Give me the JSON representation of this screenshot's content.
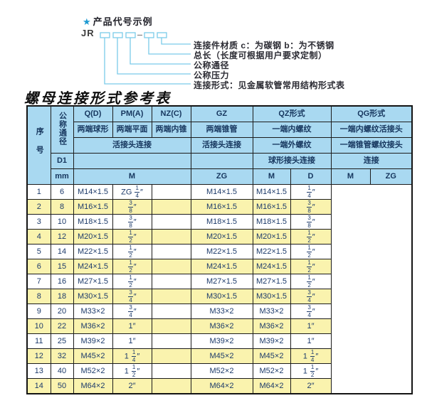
{
  "diagram": {
    "star": "★",
    "heading": "产品代号示例",
    "prefix": "JR",
    "labels": [
      "连接件材质  c：为碳钢  b：为不锈钢",
      "总长（长度可根据用户要求定制）",
      "公称通径",
      "公称压力",
      "连接形式：见金属软管常用结构形式表"
    ]
  },
  "table_title": "螺母连接形式参考表",
  "table": {
    "header": {
      "serial": "序号",
      "diameter": "公称通径",
      "d1": "D1",
      "mm": "mm",
      "q": "Q(D)",
      "q_desc": "两端球形",
      "pm": "PM(A)",
      "pm_desc": "两端平面",
      "nz": "NZ(C)",
      "nz_desc": "两端内锥",
      "union_conn": "活接头连接",
      "gz": "GZ",
      "gz_desc": "两端锥管",
      "gz_conn": "活接头连接",
      "qz": "QZ形式",
      "qz_row2": "一端内螺纹",
      "qz_row3": "一端外螺纹",
      "qz_row4": "球形接头连接",
      "qg": "QG形式",
      "qg_row2": "一端内螺纹活接头",
      "qg_row3": "一端锥管螺纹接头",
      "qg_row4": "连接",
      "m_label": "M",
      "zg_label": "ZG",
      "d_label": "D"
    },
    "rows": [
      {
        "no": "1",
        "mm": "6",
        "m": "M14×1.5",
        "gz": "ZG 1/4″",
        "qz_m": "",
        "qz_d": "M14×1.5",
        "qg_m": "M14×1.5",
        "qg_zg": "1/4″"
      },
      {
        "no": "2",
        "mm": "8",
        "m": "M16×1.5",
        "gz": "3/8″",
        "qz_m": "",
        "qz_d": "M16×1.5",
        "qg_m": "M16×1.5",
        "qg_zg": "3/8″"
      },
      {
        "no": "3",
        "mm": "10",
        "m": "M18×1.5",
        "gz": "3/8″",
        "qz_m": "",
        "qz_d": "M18×1.5",
        "qg_m": "M18×1.5",
        "qg_zg": "3/8″"
      },
      {
        "no": "4",
        "mm": "12",
        "m": "M20×1.5",
        "gz": "1/2″",
        "qz_m": "",
        "qz_d": "M20×1.5",
        "qg_m": "M20×1.5",
        "qg_zg": "1/2″"
      },
      {
        "no": "5",
        "mm": "14",
        "m": "M22×1.5",
        "gz": "1/2″",
        "qz_m": "",
        "qz_d": "M22×1.5",
        "qg_m": "M22×1.5",
        "qg_zg": "1/2″"
      },
      {
        "no": "6",
        "mm": "15",
        "m": "M24×1.5",
        "gz": "1/2″",
        "qz_m": "",
        "qz_d": "M24×1.5",
        "qg_m": "M24×1.5",
        "qg_zg": "1/2″"
      },
      {
        "no": "7",
        "mm": "16",
        "m": "M27×1.5",
        "gz": "1/2″",
        "qz_m": "",
        "qz_d": "M27×1.5",
        "qg_m": "M27×1.5",
        "qg_zg": "1/2″"
      },
      {
        "no": "8",
        "mm": "18",
        "m": "M30×1.5",
        "gz": "3/4″",
        "qz_m": "",
        "qz_d": "M30×1.5",
        "qg_m": "M30×1.5",
        "qg_zg": "3/4″"
      },
      {
        "no": "9",
        "mm": "20",
        "m": "M33×2",
        "gz": "3/4″",
        "qz_m": "",
        "qz_d": "M33×2",
        "qg_m": "M33×2",
        "qg_zg": "3/4″"
      },
      {
        "no": "10",
        "mm": "22",
        "m": "M36×2",
        "gz": "1″",
        "qz_m": "",
        "qz_d": "M36×2",
        "qg_m": "M36×2",
        "qg_zg": "1″"
      },
      {
        "no": "11",
        "mm": "25",
        "m": "M39×2",
        "gz": "1″",
        "qz_m": "",
        "qz_d": "M39×2",
        "qg_m": "M39×2",
        "qg_zg": "1″"
      },
      {
        "no": "12",
        "mm": "32",
        "m": "M45×2",
        "gz": "1 1/4″",
        "qz_m": "",
        "qz_d": "M45×2",
        "qg_m": "M45×2",
        "qg_zg": "1 1/4″"
      },
      {
        "no": "13",
        "mm": "40",
        "m": "M52×2",
        "gz": "1 1/2″",
        "qz_m": "",
        "qz_d": "M52×2",
        "qg_m": "M52×2",
        "qg_zg": "1 1/2″"
      },
      {
        "no": "14",
        "mm": "50",
        "m": "M64×2",
        "gz": "2″",
        "qz_m": "",
        "qz_d": "M64×2",
        "qg_m": "M64×2",
        "qg_zg": "2″"
      }
    ]
  },
  "colors": {
    "header_blue": "#a9d9f1",
    "row_yellow": "#faf3ae",
    "row_white": "#ffffff",
    "diagram_line": "#7bcbe9",
    "table_text": "#1d3b6b",
    "star_blue": "#1e9ad2"
  }
}
